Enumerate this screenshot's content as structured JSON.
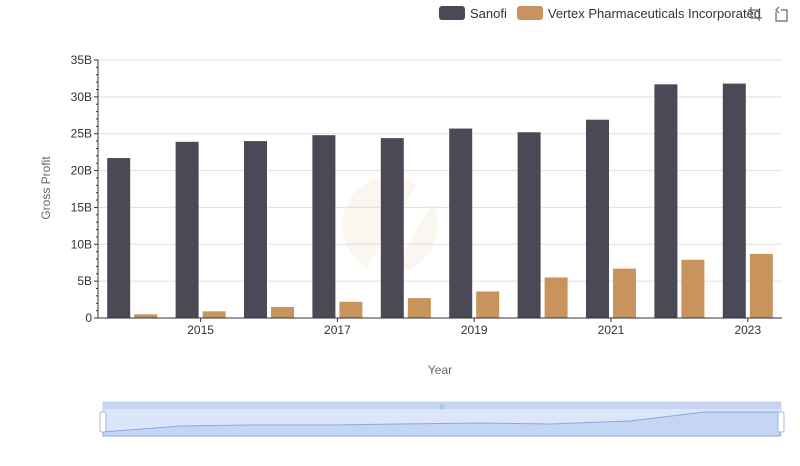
{
  "chart_data": {
    "type": "bar",
    "title": "",
    "xlabel": "Year",
    "ylabel": "Gross Profit",
    "categories": [
      "2014",
      "2015",
      "2016",
      "2017",
      "2018",
      "2019",
      "2020",
      "2021",
      "2022",
      "2023"
    ],
    "x_tick_labels": [
      "2015",
      "2017",
      "2019",
      "2021",
      "2023"
    ],
    "y_tick_labels": [
      "0",
      "5B",
      "10B",
      "15B",
      "20B",
      "25B",
      "30B",
      "35B"
    ],
    "ylim": [
      0,
      35000000000
    ],
    "y_ticks": [
      0,
      5000000000,
      10000000000,
      15000000000,
      20000000000,
      25000000000,
      30000000000,
      35000000000
    ],
    "grid": true,
    "legend_position": "top-right",
    "series": [
      {
        "name": "Sanofi",
        "color": "#4a4955",
        "values": [
          21700000000,
          23900000000,
          24000000000,
          24800000000,
          24400000000,
          25700000000,
          25200000000,
          26900000000,
          31700000000,
          31800000000
        ]
      },
      {
        "name": "Vertex Pharmaceuticals Incorporated",
        "color": "#c9935e",
        "values": [
          500000000,
          900000000,
          1500000000,
          2200000000,
          2700000000,
          3600000000,
          5500000000,
          6700000000,
          7900000000,
          8700000000
        ]
      }
    ]
  },
  "toolbar": {
    "icons": [
      "zoom-icon",
      "restore-icon"
    ]
  },
  "colors": {
    "grid": "#e0e0e0",
    "axis": "#333333",
    "text": "#333333",
    "slider_fill": "#dbe6fb",
    "slider_border": "#b9c9ee"
  }
}
